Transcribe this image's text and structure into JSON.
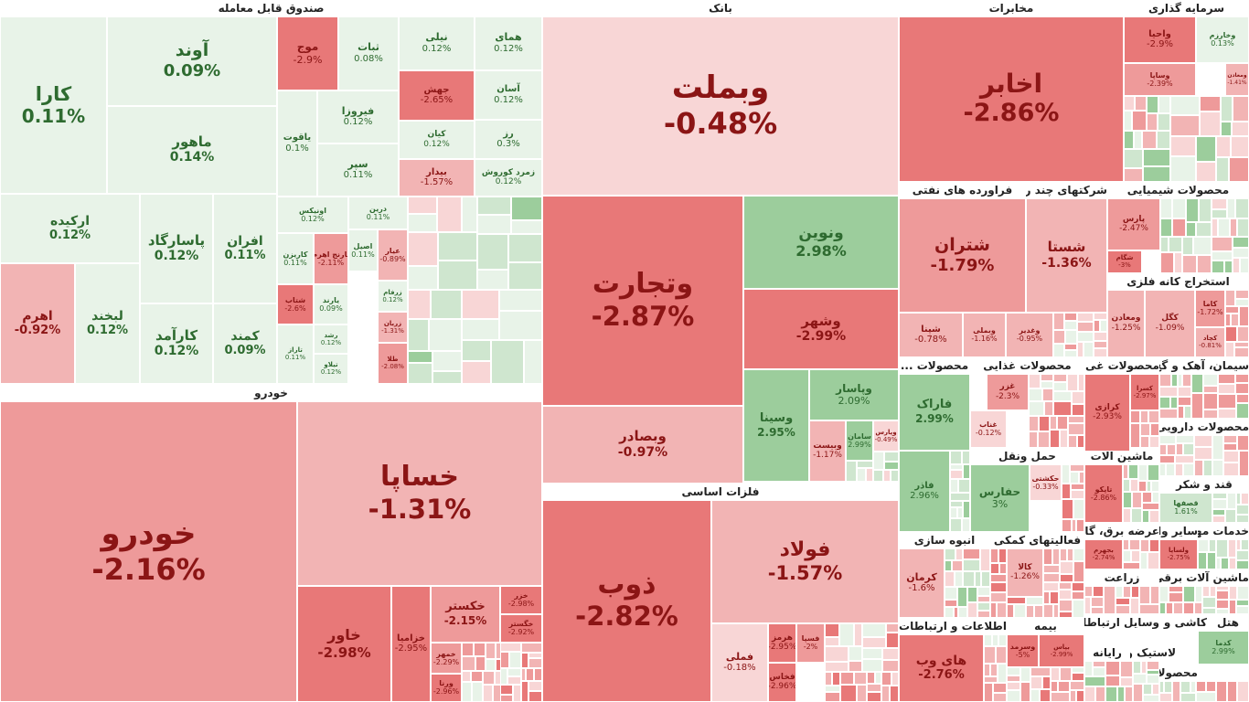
{
  "chart_data": {
    "type": "treemap",
    "colors": {
      "pos_light": "#e8f3e8",
      "pos_mid": "#cfe6cf",
      "pos_strong": "#9ccd9c",
      "neg_light": "#f8d6d6",
      "neg_mid": "#f2b4b4",
      "neg_strong": "#ee9a9a",
      "neg_deep": "#e87878",
      "text_pos": "#2e6b30",
      "text_neg": "#8b1515"
    },
    "sectors": [
      {
        "name": "صندوق قابل معامله",
        "stocks": [
          {
            "symbol": "کارا",
            "change": "0.11%"
          },
          {
            "symbol": "آوند",
            "change": "0.09%"
          },
          {
            "symbol": "ماهور",
            "change": "0.14%"
          },
          {
            "symbol": "ارکیده",
            "change": "0.12%"
          },
          {
            "symbol": "پاسارگاد",
            "change": "0.12%"
          },
          {
            "symbol": "افران",
            "change": "0.11%"
          },
          {
            "symbol": "اهرم",
            "change": "-0.92%"
          },
          {
            "symbol": "لبخند",
            "change": "0.12%"
          },
          {
            "symbol": "کارآمد",
            "change": "0.12%"
          },
          {
            "symbol": "کمند",
            "change": "0.09%"
          },
          {
            "symbol": "موج",
            "change": "-2.9%"
          },
          {
            "symbol": "ثبات",
            "change": "0.08%"
          },
          {
            "symbol": "نیلی",
            "change": "0.12%"
          },
          {
            "symbol": "همای",
            "change": "0.12%"
          },
          {
            "symbol": "فیروزا",
            "change": "0.12%"
          },
          {
            "symbol": "جهش",
            "change": "-2.65%"
          },
          {
            "symbol": "آسان",
            "change": "0.12%"
          },
          {
            "symbol": "یاقوت",
            "change": "0.1%"
          },
          {
            "symbol": "کیان",
            "change": "0.12%"
          },
          {
            "symbol": "رز",
            "change": "0.3%"
          },
          {
            "symbol": "سپر",
            "change": "0.11%"
          },
          {
            "symbol": "بیدار",
            "change": "-1.57%"
          },
          {
            "symbol": "زمرد کوروش",
            "change": "0.12%"
          },
          {
            "symbol": "اونیکس",
            "change": "0.12%"
          },
          {
            "symbol": "درین",
            "change": "0.11%"
          },
          {
            "symbol": "کاریزن",
            "change": "0.11%"
          },
          {
            "symbol": "نارنج اهرم",
            "change": "-2.11%"
          },
          {
            "symbol": "اصیل",
            "change": "0.11%"
          },
          {
            "symbol": "عیار",
            "change": "-0.89%"
          },
          {
            "symbol": "شتاب",
            "change": "-2.6%"
          },
          {
            "symbol": "یارند",
            "change": "0.09%"
          },
          {
            "symbol": "زرفام",
            "change": "0.12%"
          },
          {
            "symbol": "زربان",
            "change": "-1.31%"
          },
          {
            "symbol": "رشد",
            "change": "0.12%"
          },
          {
            "symbol": "تیلاو",
            "change": "0.12%"
          },
          {
            "symbol": "تاراز",
            "change": "0.11%"
          },
          {
            "symbol": "طلا",
            "change": "-2.08%"
          }
        ]
      },
      {
        "name": "خودرو",
        "stocks": [
          {
            "symbol": "خودرو",
            "change": "-2.16%"
          },
          {
            "symbol": "خساپا",
            "change": "-1.31%"
          },
          {
            "symbol": "خاور",
            "change": "-2.98%"
          },
          {
            "symbol": "خزامیا",
            "change": "-2.95%"
          },
          {
            "symbol": "خکستر",
            "change": "-2.15%"
          },
          {
            "symbol": "خزر",
            "change": "-2.98%"
          },
          {
            "symbol": "خگستر",
            "change": "-2.92%"
          },
          {
            "symbol": "خمهر",
            "change": "-2.29%"
          },
          {
            "symbol": "ورنا",
            "change": "-2.96%"
          }
        ]
      },
      {
        "name": "بانک",
        "stocks": [
          {
            "symbol": "وبملت",
            "change": "-0.48%"
          },
          {
            "symbol": "وتجارت",
            "change": "-2.87%"
          },
          {
            "symbol": "ونوین",
            "change": "2.98%"
          },
          {
            "symbol": "وشهر",
            "change": "-2.99%"
          },
          {
            "symbol": "وبصادر",
            "change": "-0.97%"
          },
          {
            "symbol": "وپاسار",
            "change": "2.09%"
          },
          {
            "symbol": "وسینا",
            "change": "2.95%"
          },
          {
            "symbol": "وبیست",
            "change": "-1.17%"
          },
          {
            "symbol": "وپارس",
            "change": "-0.49%"
          },
          {
            "symbol": "سامان",
            "change": "2.99%"
          }
        ]
      },
      {
        "name": "فلزات اساسی",
        "stocks": [
          {
            "symbol": "ذوب",
            "change": "-2.82%"
          },
          {
            "symbol": "فولاد",
            "change": "-1.57%"
          },
          {
            "symbol": "فملی",
            "change": "-0.18%"
          },
          {
            "symbol": "هرمز",
            "change": "-2.95%"
          },
          {
            "symbol": "فسپا",
            "change": "-2%"
          },
          {
            "symbol": "فخاس",
            "change": "-2.96%"
          }
        ]
      },
      {
        "name": "مخابرات",
        "stocks": [
          {
            "symbol": "اخابر",
            "change": "-2.86%"
          }
        ]
      },
      {
        "name": "سرمایه گذاری",
        "stocks": [
          {
            "symbol": "واحیا",
            "change": "-2.9%"
          },
          {
            "symbol": "وخارزم",
            "change": "0.13%"
          },
          {
            "symbol": "وساپا",
            "change": "-2.39%"
          },
          {
            "symbol": "ومعادن",
            "change": "-1.41%"
          }
        ]
      },
      {
        "name": "فراورده های نفتی",
        "stocks": [
          {
            "symbol": "شتران",
            "change": "-1.79%"
          },
          {
            "symbol": "شپنا",
            "change": "-0.78%"
          }
        ]
      },
      {
        "name": "شرکتهای چند ر...",
        "stocks": [
          {
            "symbol": "شستا",
            "change": "-1.36%"
          },
          {
            "symbol": "وبملی",
            "change": "-1.16%"
          },
          {
            "symbol": "وغدیر",
            "change": "-0.95%"
          }
        ]
      },
      {
        "name": "محصولات شیمیایی",
        "stocks": [
          {
            "symbol": "پارس",
            "change": "-2.47%"
          },
          {
            "symbol": "شگام",
            "change": "-3%"
          }
        ]
      },
      {
        "name": "استخراج کانه فلزی",
        "stocks": [
          {
            "symbol": "کگل",
            "change": "-1.09%"
          },
          {
            "symbol": "کاما",
            "change": "-1.72%"
          },
          {
            "symbol": "کچاد",
            "change": "-0.81%"
          },
          {
            "symbol": "ومعادن",
            "change": "-1.25%"
          }
        ]
      },
      {
        "name": "محصولات ...",
        "stocks": [
          {
            "symbol": "فاراک",
            "change": "2.99%"
          },
          {
            "symbol": "فاذر",
            "change": "2.96%"
          }
        ]
      },
      {
        "name": "محصولات غذایی",
        "stocks": [
          {
            "symbol": "غزر",
            "change": "-2.3%"
          },
          {
            "symbol": "غناب",
            "change": "-0.12%"
          }
        ]
      },
      {
        "name": "محصولات غی...",
        "stocks": [
          {
            "symbol": "کرازی",
            "change": "-2.93%"
          },
          {
            "symbol": "کسرا",
            "change": "-2.97%"
          }
        ]
      },
      {
        "name": "سیمان، آهک و گچ",
        "stocks": []
      },
      {
        "name": "محصولات دارویی",
        "stocks": []
      },
      {
        "name": "حمل ونقل",
        "stocks": [
          {
            "symbol": "حفارس",
            "change": "3%"
          },
          {
            "symbol": "حکشتی",
            "change": "-0.33%"
          }
        ]
      },
      {
        "name": "ماشین آلات",
        "stocks": [
          {
            "symbol": "تاپکو",
            "change": "-2.86%"
          }
        ]
      },
      {
        "name": "قند و شکر",
        "stocks": [
          {
            "symbol": "قصفها",
            "change": "1.61%"
          }
        ]
      },
      {
        "name": "انبوه سازی",
        "stocks": [
          {
            "symbol": "کرمان",
            "change": "-1.6%"
          }
        ]
      },
      {
        "name": "فعالیتهای کمکی",
        "stocks": [
          {
            "symbol": "کالا",
            "change": "-1.26%"
          }
        ]
      },
      {
        "name": "عرضه برق، گاز",
        "stocks": [
          {
            "symbol": "بجهرم",
            "change": "-2.74%"
          }
        ]
      },
      {
        "name": "خدمات مهند...",
        "stocks": []
      },
      {
        "name": "سایر واسط...",
        "stocks": []
      },
      {
        "name": "زراعت",
        "stocks": [
          {
            "symbol": "ولساپا",
            "change": "-2.75%"
          },
          {
            "symbol": "زملارد",
            "change": "-2.99%"
          }
        ]
      },
      {
        "name": "ماشین آلات برقی",
        "stocks": []
      },
      {
        "name": "اطلاعات و ارتباطات",
        "stocks": [
          {
            "symbol": "های وب",
            "change": "-2.76%"
          }
        ]
      },
      {
        "name": "بیمه",
        "stocks": [
          {
            "symbol": "وسرمد",
            "change": "-5%"
          },
          {
            "symbol": "بپاس",
            "change": "-2.99%"
          }
        ]
      },
      {
        "name": "رایانه",
        "stocks": []
      },
      {
        "name": "لاستیک و ...",
        "stocks": [
          {
            "symbol": "کدما",
            "change": "2.99%"
          }
        ]
      },
      {
        "name": "وسایل ارتباطاتی",
        "stocks": []
      },
      {
        "name": "کاشی و سر...",
        "stocks": []
      },
      {
        "name": "هتل",
        "stocks": []
      },
      {
        "name": "محصولات...",
        "stocks": []
      }
    ]
  }
}
